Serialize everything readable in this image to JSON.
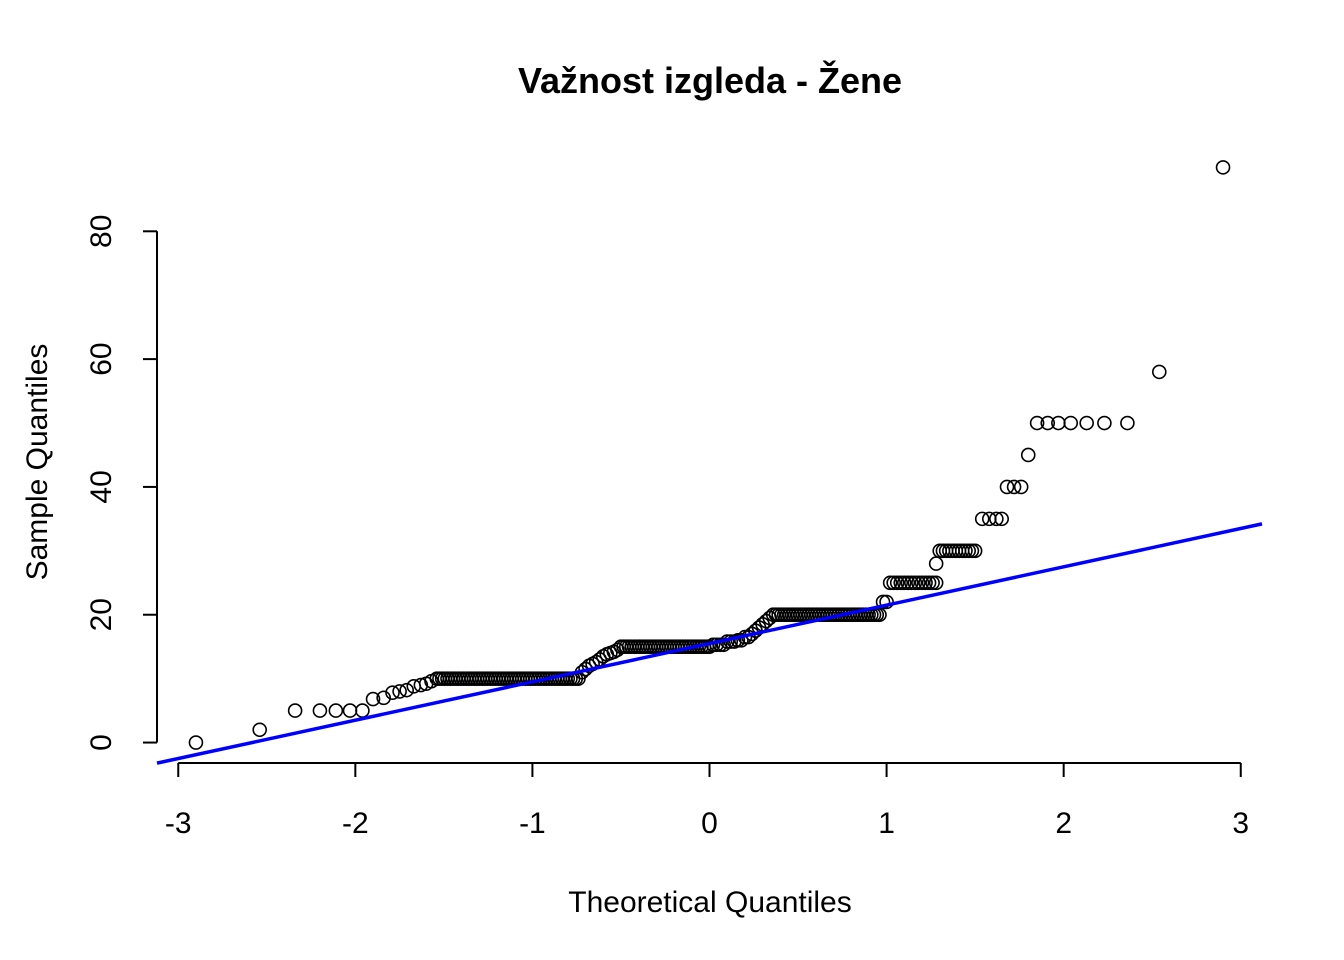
{
  "chart_data": {
    "type": "scatter",
    "title": "Važnost izgleda - Žene",
    "xlabel": "Theoretical Quantiles",
    "ylabel": "Sample Quantiles",
    "xlim": [
      -3.12,
      3.12
    ],
    "ylim": [
      -3.2,
      91
    ],
    "xticks": [
      -3,
      -2,
      -1,
      0,
      1,
      2,
      3
    ],
    "xtick_labels": [
      "-3",
      "-2",
      "-1",
      "0",
      "1",
      "2",
      "3"
    ],
    "yticks": [
      0,
      20,
      40,
      60,
      80
    ],
    "ytick_labels": [
      "0",
      "20",
      "40",
      "60",
      "80"
    ],
    "grid": false,
    "series": [
      {
        "kind": "points",
        "color": "#000000",
        "groups": [
          {
            "x": [
              -2.9
            ],
            "y": 0
          },
          {
            "x": [
              -2.54
            ],
            "y": 2
          },
          {
            "x": [
              -2.34,
              -2.2,
              -2.11,
              -2.03
            ],
            "y": 5
          },
          {
            "x": [
              -1.96
            ],
            "y": 5
          },
          {
            "x": [
              -1.9
            ],
            "y": 6.8
          },
          {
            "x": [
              -1.84
            ],
            "y": 7
          },
          {
            "x": [
              -1.79
            ],
            "y": 7.8
          },
          {
            "x": [
              -1.75
            ],
            "y": 8
          },
          {
            "x": [
              -1.71
            ],
            "y": 8.2
          },
          {
            "x": [
              -1.67
            ],
            "y": 8.8
          },
          {
            "x": [
              -1.63
            ],
            "y": 9
          },
          {
            "x": [
              -1.6
            ],
            "y": 9.2
          },
          {
            "x": [
              -1.57
            ],
            "y": 9.6
          },
          {
            "range": [
              -1.54,
              -0.74
            ],
            "n": 54,
            "y": 10
          },
          {
            "x": [
              -0.72
            ],
            "y": 11
          },
          {
            "x": [
              -0.7
            ],
            "y": 11.5
          },
          {
            "x": [
              -0.68
            ],
            "y": 12
          },
          {
            "x": [
              -0.66
            ],
            "y": 12.3
          },
          {
            "x": [
              -0.64
            ],
            "y": 12.6
          },
          {
            "x": [
              -0.62
            ],
            "y": 13
          },
          {
            "x": [
              -0.6
            ],
            "y": 13.5
          },
          {
            "x": [
              -0.58
            ],
            "y": 13.8
          },
          {
            "x": [
              -0.56
            ],
            "y": 14
          },
          {
            "x": [
              -0.54
            ],
            "y": 14.2
          },
          {
            "x": [
              -0.52
            ],
            "y": 14.5
          },
          {
            "range": [
              -0.5,
              0.0
            ],
            "n": 34,
            "y": 15
          },
          {
            "x": [
              0.02,
              0.04,
              0.06,
              0.08
            ],
            "y": 15.3
          },
          {
            "x": [
              0.1,
              0.12,
              0.14
            ],
            "y": 15.8
          },
          {
            "x": [
              0.16,
              0.18
            ],
            "y": 16
          },
          {
            "x": [
              0.2,
              0.22
            ],
            "y": 16.5
          },
          {
            "x": [
              0.24
            ],
            "y": 17
          },
          {
            "x": [
              0.26
            ],
            "y": 17.5
          },
          {
            "x": [
              0.28
            ],
            "y": 18
          },
          {
            "x": [
              0.3
            ],
            "y": 18.5
          },
          {
            "x": [
              0.32
            ],
            "y": 19
          },
          {
            "x": [
              0.34
            ],
            "y": 19.5
          },
          {
            "range": [
              0.36,
              0.96
            ],
            "n": 40,
            "y": 20
          },
          {
            "x": [
              0.98,
              1.0
            ],
            "y": 22
          },
          {
            "range": [
              1.02,
              1.28
            ],
            "n": 14,
            "y": 25
          },
          {
            "x": [
              1.28
            ],
            "y": 28
          },
          {
            "range": [
              1.3,
              1.5
            ],
            "n": 12,
            "y": 30
          },
          {
            "x": [
              1.54,
              1.58,
              1.62,
              1.65
            ],
            "y": 35
          },
          {
            "x": [
              1.68,
              1.72,
              1.76
            ],
            "y": 40
          },
          {
            "x": [
              1.8
            ],
            "y": 45
          },
          {
            "x": [
              1.85,
              1.91,
              1.97,
              2.04,
              2.13,
              2.23,
              2.36
            ],
            "y": 50
          },
          {
            "x": [
              2.54
            ],
            "y": 58
          },
          {
            "x": [
              2.9
            ],
            "y": 90
          }
        ]
      },
      {
        "kind": "line",
        "color": "#0000ff",
        "intercept": 15.5,
        "slope": 6.0
      }
    ]
  }
}
